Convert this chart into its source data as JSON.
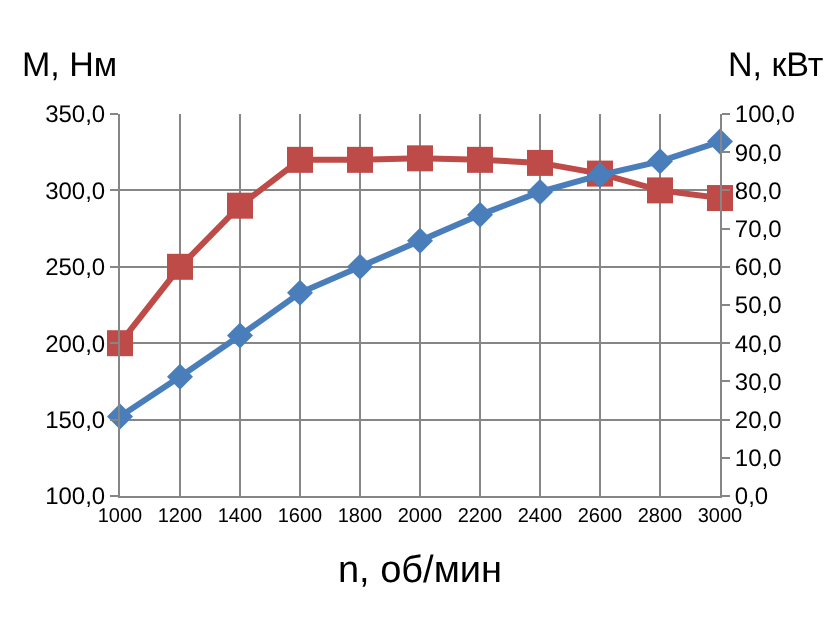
{
  "chart_data": {
    "type": "line",
    "ylabel": "M, Нм",
    "y2label": "N, кВт",
    "xlabel": "n, об/мин",
    "x": [
      1000,
      1200,
      1400,
      1600,
      1800,
      2000,
      2200,
      2400,
      2600,
      2800,
      3000
    ],
    "xlim": [
      1000,
      3000
    ],
    "xticks": [
      1000,
      1200,
      1400,
      1600,
      1800,
      2000,
      2200,
      2400,
      2600,
      2800,
      3000
    ],
    "ylim": [
      100,
      350
    ],
    "yticks": [
      {
        "value": 100,
        "label": "100,0"
      },
      {
        "value": 150,
        "label": "150,0"
      },
      {
        "value": 200,
        "label": "200,0"
      },
      {
        "value": 250,
        "label": "250,0"
      },
      {
        "value": 300,
        "label": "300,0"
      },
      {
        "value": 350,
        "label": "350,0"
      }
    ],
    "y2lim": [
      0,
      100
    ],
    "y2ticks": [
      {
        "value": 0,
        "label": "0,0"
      },
      {
        "value": 10,
        "label": "10,0"
      },
      {
        "value": 20,
        "label": "20,0"
      },
      {
        "value": 30,
        "label": "30,0"
      },
      {
        "value": 40,
        "label": "40,0"
      },
      {
        "value": 50,
        "label": "50,0"
      },
      {
        "value": 60,
        "label": "60,0"
      },
      {
        "value": 70,
        "label": "70,0"
      },
      {
        "value": 80,
        "label": "80,0"
      },
      {
        "value": 90,
        "label": "90,0"
      },
      {
        "value": 100,
        "label": "100,0"
      }
    ],
    "grid": true,
    "legend": false,
    "series": [
      {
        "color": "#be4b48",
        "marker": "square",
        "values": [
          200,
          250,
          290,
          320,
          320,
          321,
          320,
          318,
          311,
          300,
          295
        ]
      },
      {
        "color": "#4a7ebb",
        "marker": "diamond",
        "axis": "y2",
        "values": [
          20.8,
          31.2,
          42,
          53.2,
          60,
          66.8,
          73.6,
          79.6,
          84,
          87.6,
          92.8
        ]
      }
    ]
  }
}
